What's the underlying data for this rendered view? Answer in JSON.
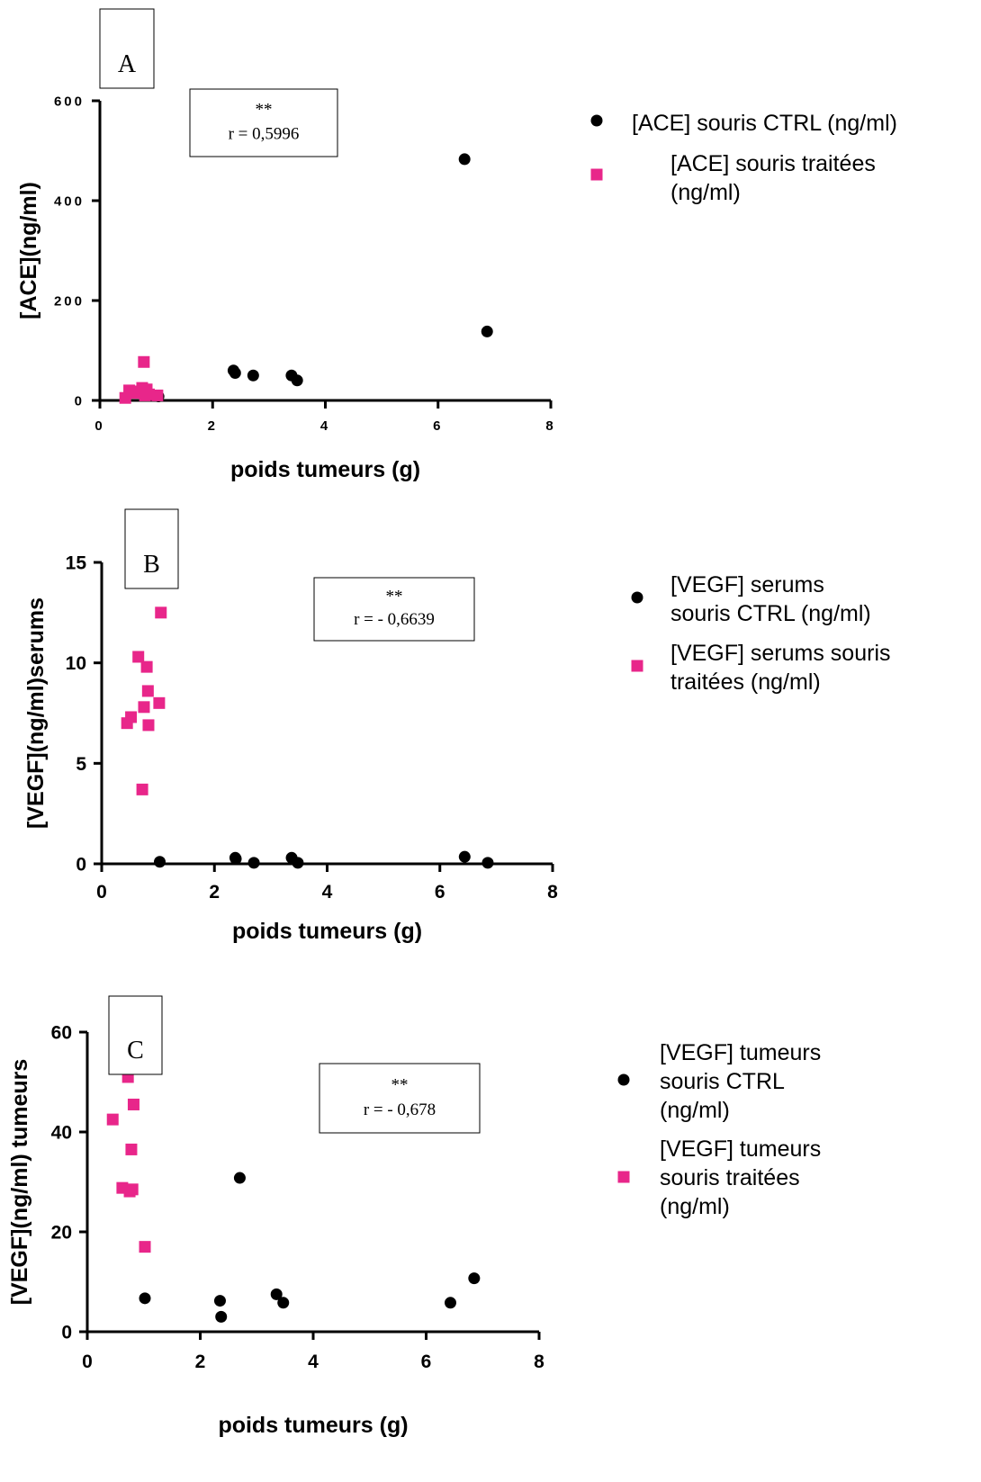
{
  "colors": {
    "ctrl": "#000000",
    "treated": "#e8268a"
  },
  "chart_data": [
    {
      "type": "scatter",
      "panel_label": "A",
      "xlabel": "poids tumeurs (g)",
      "ylabel": "[ACE](ng/ml)",
      "xlim": [
        0,
        8
      ],
      "ylim": [
        0,
        600
      ],
      "xticks": [
        "0",
        "2",
        "4",
        "6",
        "8"
      ],
      "yticks": [
        "0",
        "200",
        "400",
        "600"
      ],
      "annotation": {
        "stars": "**",
        "r": "r = 0,5996"
      },
      "series": [
        {
          "name": "[ACE] souris CTRL (ng/ml)",
          "marker": "circle",
          "color": "#000000",
          "points": [
            [
              1.04,
              8
            ],
            [
              2.37,
              60
            ],
            [
              2.4,
              55
            ],
            [
              2.72,
              50
            ],
            [
              3.4,
              50
            ],
            [
              3.5,
              40
            ],
            [
              6.47,
              483
            ],
            [
              6.87,
              138
            ]
          ]
        },
        {
          "name": "[ACE] souris traitées (ng/ml)",
          "marker": "square",
          "color": "#e8268a",
          "points": [
            [
              0.45,
              5
            ],
            [
              0.52,
              20
            ],
            [
              0.62,
              15
            ],
            [
              0.7,
              18
            ],
            [
              0.75,
              25
            ],
            [
              0.78,
              77
            ],
            [
              0.8,
              10
            ],
            [
              0.83,
              22
            ],
            [
              0.87,
              12
            ],
            [
              1.02,
              10
            ]
          ]
        }
      ]
    },
    {
      "type": "scatter",
      "panel_label": "B",
      "xlabel": "poids tumeurs (g)",
      "ylabel": "[VEGF](ng/ml)serums",
      "xlim": [
        0,
        8
      ],
      "ylim": [
        0,
        15
      ],
      "xticks": [
        "0",
        "2",
        "4",
        "6",
        "8"
      ],
      "yticks": [
        "0",
        "5",
        "10",
        "15"
      ],
      "annotation": {
        "stars": "**",
        "r": "r = - 0,6639"
      },
      "series": [
        {
          "name": "[VEGF] serums souris CTRL (ng/ml)",
          "marker": "circle",
          "color": "#000000",
          "points": [
            [
              1.03,
              0.1
            ],
            [
              2.37,
              0.3
            ],
            [
              2.38,
              0.25
            ],
            [
              2.7,
              0.05
            ],
            [
              3.37,
              0.3
            ],
            [
              3.48,
              0.05
            ],
            [
              6.44,
              0.35
            ],
            [
              6.85,
              0.05
            ]
          ]
        },
        {
          "name": "[VEGF] serums souris traitées (ng/ml)",
          "marker": "square",
          "color": "#e8268a",
          "points": [
            [
              0.45,
              7.0
            ],
            [
              0.52,
              7.3
            ],
            [
              0.65,
              10.3
            ],
            [
              0.72,
              3.7
            ],
            [
              0.75,
              7.8
            ],
            [
              0.8,
              9.8
            ],
            [
              0.82,
              8.6
            ],
            [
              0.83,
              6.9
            ],
            [
              1.02,
              8.0
            ],
            [
              1.05,
              12.5
            ]
          ]
        }
      ]
    },
    {
      "type": "scatter",
      "panel_label": "C",
      "xlabel": "poids tumeurs (g)",
      "ylabel": "[VEGF](ng/ml) tumeurs",
      "xlim": [
        0,
        8
      ],
      "ylim": [
        0,
        60
      ],
      "xticks": [
        "0",
        "2",
        "4",
        "6",
        "8"
      ],
      "yticks": [
        "0",
        "20",
        "40",
        "60"
      ],
      "annotation": {
        "stars": "**",
        "r": "r = - 0,678"
      },
      "series": [
        {
          "name": "[VEGF] tumeurs souris CTRL (ng/ml)",
          "marker": "circle",
          "color": "#000000",
          "points": [
            [
              1.02,
              6.7
            ],
            [
              2.35,
              6.2
            ],
            [
              2.37,
              3.0
            ],
            [
              2.7,
              30.8
            ],
            [
              3.35,
              7.5
            ],
            [
              3.47,
              5.8
            ],
            [
              6.43,
              5.8
            ],
            [
              6.85,
              10.7
            ]
          ]
        },
        {
          "name": "[VEGF] tumeurs souris traitées (ng/ml)",
          "marker": "square",
          "color": "#e8268a",
          "points": [
            [
              0.45,
              42.5
            ],
            [
              0.62,
              28.8
            ],
            [
              0.72,
              51.0
            ],
            [
              0.75,
              28.1
            ],
            [
              0.78,
              36.5
            ],
            [
              0.8,
              28.5
            ],
            [
              0.82,
              45.5
            ],
            [
              1.02,
              17.0
            ]
          ]
        }
      ]
    }
  ]
}
